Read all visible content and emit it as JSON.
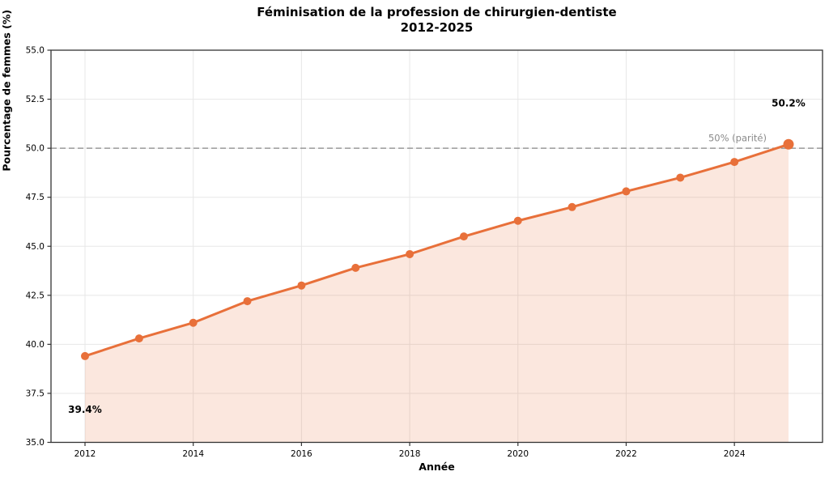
{
  "figure": {
    "title_line1": "Féminisation de la profession de chirurgien-dentiste",
    "title_line2": "2012-2025"
  },
  "chart_data": {
    "type": "line",
    "title": "Féminisation de la profession de chirurgien-dentiste 2012-2025",
    "xlabel": "Année",
    "ylabel": "Pourcentage de femmes (%)",
    "x": [
      2012,
      2013,
      2014,
      2015,
      2016,
      2017,
      2018,
      2019,
      2020,
      2021,
      2022,
      2023,
      2024,
      2025
    ],
    "values": [
      39.4,
      40.3,
      41.1,
      42.2,
      43.0,
      43.9,
      44.6,
      45.5,
      46.3,
      47.0,
      47.8,
      48.5,
      49.3,
      50.2
    ],
    "ylim": [
      35.0,
      55.0
    ],
    "yticks": [
      35.0,
      37.5,
      40.0,
      42.5,
      45.0,
      47.5,
      50.0,
      52.5,
      55.0
    ],
    "xticks": [
      2012,
      2014,
      2016,
      2018,
      2020,
      2022,
      2024
    ],
    "grid": true,
    "legend": null,
    "area_fill": true,
    "reference_line": {
      "value": 50.0,
      "label": "50% (parité)"
    },
    "annotations": [
      {
        "x": 2012,
        "value": 39.4,
        "text": "39.4%",
        "position": "below"
      },
      {
        "x": 2025,
        "value": 50.2,
        "text": "50.2%",
        "position": "above"
      }
    ],
    "colors": {
      "line": "#e8703a",
      "fill": "rgba(232,112,58,0.17)",
      "grid": "#e7e7e7",
      "spine": "#333333",
      "reference": "#999999",
      "reference_label": "#8a8a8a",
      "text": "#000000"
    }
  }
}
